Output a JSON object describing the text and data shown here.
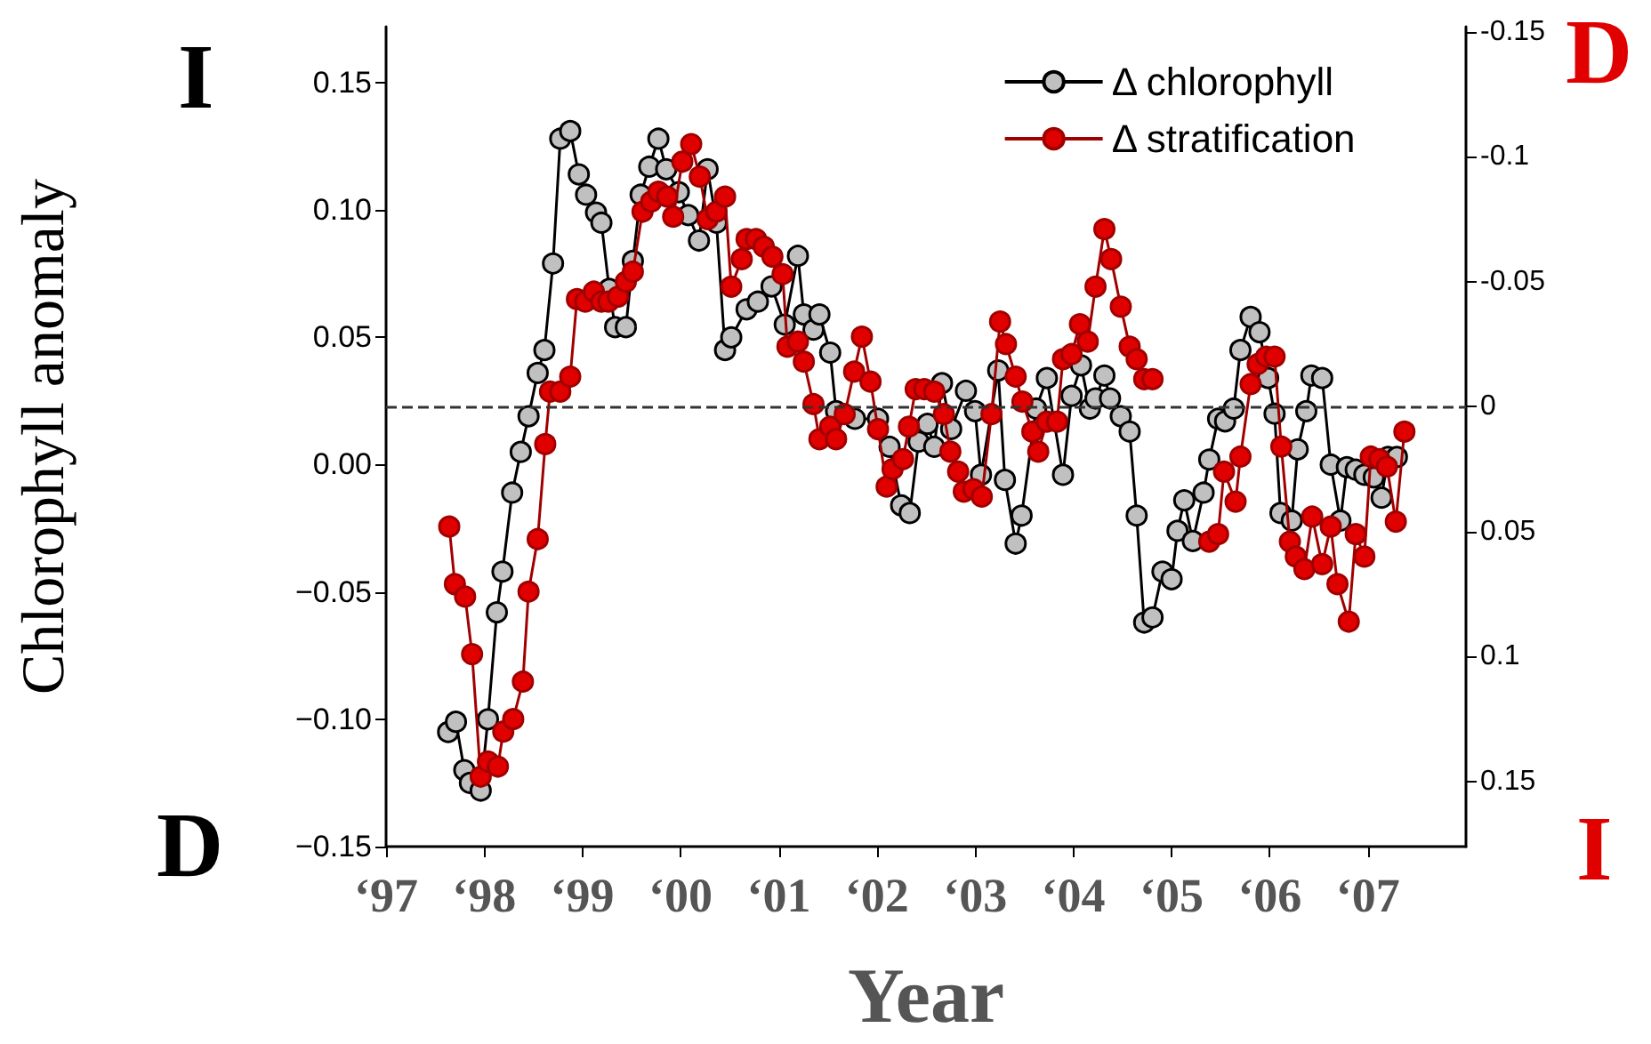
{
  "chart_data": {
    "type": "line",
    "xlabel": "Year",
    "ylabel": "Chlorophyll anomaly",
    "annotations": [
      "I",
      "D",
      "D",
      "I"
    ],
    "xlim": [
      "1997",
      "2008"
    ],
    "xticks": [
      {
        "value": "1997",
        "label": "‘97"
      },
      {
        "value": "1998",
        "label": "‘98"
      },
      {
        "value": "1999",
        "label": "‘99"
      },
      {
        "value": "2000",
        "label": "‘00"
      },
      {
        "value": "2001",
        "label": "‘01"
      },
      {
        "value": "2002",
        "label": "‘02"
      },
      {
        "value": "2003",
        "label": "‘03"
      },
      {
        "value": "2004",
        "label": "‘04"
      },
      {
        "value": "2005",
        "label": "‘05"
      },
      {
        "value": "2006",
        "label": "‘06"
      },
      {
        "value": "2007",
        "label": "‘07"
      }
    ],
    "ylim": [
      -0.15,
      0.172
    ],
    "yticks": [
      {
        "value": -0.15,
        "label": "−0.15"
      },
      {
        "value": -0.1,
        "label": "−0.10"
      },
      {
        "value": -0.05,
        "label": "−0.05"
      },
      {
        "value": 0,
        "label": "0.00"
      },
      {
        "value": 0.05,
        "label": "0.05"
      },
      {
        "value": 0.1,
        "label": "0.10"
      },
      0.15
    ],
    "y2lim": [
      0.176,
      -0.152
    ],
    "y2ticks": [
      -0.15,
      -0.1,
      -0.05,
      0,
      0.05,
      0.1,
      0.15
    ],
    "ref_lines": [
      {
        "axis": "y2",
        "value": 0,
        "color": "#333333",
        "line_style": "dashed"
      }
    ],
    "legend": "top right",
    "grid": false,
    "marker": "circle",
    "line_style": "solid",
    "series": [
      {
        "name": "Δ chlorophyll",
        "color": "#c0c0c0",
        "x": [
          "1997-08-20",
          "1997-09-18",
          "1997-10-19",
          "1997-11-09",
          "1997-12-19",
          "1998-01-15",
          "1998-02-17",
          "1998-03-10",
          "1998-04-15",
          "1998-05-17",
          "1998-06-15",
          "1998-07-19",
          "1998-08-13",
          "1998-09-14",
          "1998-10-11",
          "1998-11-17",
          "1998-12-19",
          "1999-01-15",
          "1999-02-21",
          "1999-03-13",
          "1999-04-11",
          "1999-05-03",
          "1999-06-12",
          "1999-07-08",
          "1999-08-06",
          "1999-09-07",
          "1999-10-11",
          "1999-11-09",
          "1999-12-26",
          "2000-01-30",
          "2000-03-10",
          "2000-04-11",
          "2000-05-14",
          "2000-06-15",
          "2000-07-08",
          "2000-09-03",
          "2000-10-15",
          "2000-12-05",
          "2001-01-23",
          "2001-03-13",
          "2001-04-04",
          "2001-05-10",
          "2001-06-01",
          "2001-07-11",
          "2001-08-02",
          "2001-10-11",
          "2002-01-05",
          "2002-02-17",
          "2002-04-01",
          "2002-05-03",
          "2002-06-05",
          "2002-07-08",
          "2002-08-02",
          "2002-08-31",
          "2002-10-04",
          "2002-11-28",
          "2003-01-01",
          "2003-01-23",
          "2003-03-28",
          "2003-04-22",
          "2003-06-01",
          "2003-06-23",
          "2003-08-16",
          "2003-09-25",
          "2003-11-24",
          "2003-12-26",
          "2004-01-30",
          "2004-03-03",
          "2004-03-24",
          "2004-04-26",
          "2004-05-17",
          "2004-06-26",
          "2004-07-29",
          "2004-08-24",
          "2004-09-21",
          "2004-10-22",
          "2004-11-28",
          "2005-01-01",
          "2005-01-23",
          "2005-02-17",
          "2005-03-21",
          "2005-04-30",
          "2005-05-21",
          "2005-06-23",
          "2005-07-19",
          "2005-08-20",
          "2005-09-14",
          "2005-10-22",
          "2005-11-24",
          "2005-12-26",
          "2006-01-19",
          "2006-02-10",
          "2006-03-24",
          "2006-04-15",
          "2006-05-17",
          "2006-06-05",
          "2006-07-15",
          "2006-08-16",
          "2006-09-21",
          "2006-10-15",
          "2006-11-17",
          "2006-12-19",
          "2007-01-23",
          "2007-02-21",
          "2007-03-17",
          "2007-04-19"
        ],
        "values": [
          -0.105,
          -0.101,
          -0.12,
          -0.125,
          -0.128,
          -0.1,
          -0.058,
          -0.042,
          -0.011,
          0.005,
          0.019,
          0.036,
          0.045,
          0.079,
          0.128,
          0.131,
          0.114,
          0.106,
          0.099,
          0.095,
          0.069,
          0.054,
          0.054,
          0.08,
          0.106,
          0.117,
          0.128,
          0.116,
          0.107,
          0.098,
          0.088,
          0.116,
          0.095,
          0.045,
          0.05,
          0.061,
          0.064,
          0.07,
          0.055,
          0.082,
          0.059,
          0.053,
          0.059,
          0.044,
          0.021,
          0.018,
          0.018,
          0.007,
          -0.016,
          -0.019,
          0.009,
          0.016,
          0.007,
          0.032,
          0.014,
          0.029,
          0.021,
          -0.004,
          0.037,
          -0.006,
          -0.031,
          -0.02,
          0.022,
          0.034,
          -0.004,
          0.027,
          0.039,
          0.022,
          0.026,
          0.035,
          0.026,
          0.019,
          0.013,
          -0.02,
          -0.062,
          -0.06,
          -0.042,
          -0.045,
          -0.026,
          -0.014,
          -0.03,
          -0.011,
          0.002,
          0.018,
          0.017,
          0.022,
          0.045,
          0.058,
          0.052,
          0.034,
          0.02,
          -0.019,
          -0.022,
          0.006,
          0.021,
          0.035,
          0.034,
          0,
          -0.022,
          -0.001,
          -0.002,
          -0.004,
          -0.005,
          -0.013,
          0.003,
          0.003
        ]
      },
      {
        "name": "Δ stratification",
        "color": "#e00000",
        "axis": "y2",
        "x": [
          "1997-08-24",
          "1997-09-14",
          "1997-10-22",
          "1997-11-17",
          "1997-12-19",
          "1998-01-15",
          "1998-02-21",
          "1998-03-13",
          "1998-04-19",
          "1998-05-25",
          "1998-06-15",
          "1998-07-19",
          "1998-08-16",
          "1998-09-03",
          "1998-10-11",
          "1998-11-17",
          "1998-12-12",
          "1999-01-12",
          "1999-02-13",
          "1999-03-13",
          "1999-04-08",
          "1999-05-14",
          "1999-06-12",
          "1999-07-08",
          "1999-08-13",
          "1999-09-14",
          "1999-10-11",
          "1999-11-13",
          "1999-12-05",
          "2000-01-08",
          "2000-02-10",
          "2000-03-13",
          "2000-04-11",
          "2000-05-14",
          "2000-06-15",
          "2000-07-08",
          "2000-08-16",
          "2000-09-03",
          "2000-10-08",
          "2000-11-06",
          "2000-12-08",
          "2001-01-15",
          "2001-02-02",
          "2001-03-13",
          "2001-04-04",
          "2001-05-10",
          "2001-06-01",
          "2001-07-11",
          "2001-08-02",
          "2001-09-03",
          "2001-10-08",
          "2001-11-06",
          "2001-12-08",
          "2002-01-05",
          "2002-02-06",
          "2002-02-28",
          "2002-04-08",
          "2002-04-30",
          "2002-05-25",
          "2002-06-26",
          "2002-08-02",
          "2002-09-07",
          "2002-10-01",
          "2002-10-30",
          "2002-11-20",
          "2002-12-26",
          "2003-01-26",
          "2003-03-03",
          "2003-04-04",
          "2003-04-26",
          "2003-06-01",
          "2003-06-26",
          "2003-08-02",
          "2003-08-24",
          "2003-09-25",
          "2003-11-02",
          "2003-11-24",
          "2003-12-26",
          "2004-01-26",
          "2004-02-24",
          "2004-03-24",
          "2004-04-26",
          "2004-05-21",
          "2004-06-26",
          "2004-07-29",
          "2004-08-24",
          "2004-09-21",
          "2004-10-22",
          "2005-02-06",
          "2005-05-21",
          "2005-06-23",
          "2005-07-15",
          "2005-08-27",
          "2005-09-14",
          "2005-10-22",
          "2005-11-17",
          "2005-12-19",
          "2006-01-19",
          "2006-02-13",
          "2006-03-17",
          "2006-04-08",
          "2006-05-10",
          "2006-06-08",
          "2006-07-15",
          "2006-08-16",
          "2006-09-10",
          "2006-10-22",
          "2006-11-17",
          "2006-12-19",
          "2007-01-12",
          "2007-02-13",
          "2007-03-13",
          "2007-04-15",
          "2007-05-17"
        ],
        "values": [
          0.048,
          0.071,
          0.076,
          0.099,
          0.148,
          0.142,
          0.144,
          0.13,
          0.125,
          0.11,
          0.074,
          0.053,
          0.015,
          -0.006,
          -0.006,
          -0.012,
          -0.043,
          -0.042,
          -0.046,
          -0.042,
          -0.042,
          -0.044,
          -0.05,
          -0.054,
          -0.078,
          -0.082,
          -0.086,
          -0.084,
          -0.076,
          -0.098,
          -0.105,
          -0.092,
          -0.075,
          -0.078,
          -0.084,
          -0.048,
          -0.059,
          -0.067,
          -0.067,
          -0.064,
          -0.06,
          -0.053,
          -0.024,
          -0.026,
          -0.018,
          -0.001,
          0.013,
          0.008,
          0.013,
          0.003,
          -0.014,
          -0.028,
          -0.01,
          0.009,
          0.032,
          0.025,
          0.021,
          0.008,
          -0.007,
          -0.007,
          -0.006,
          0.003,
          0.018,
          0.026,
          0.034,
          0.033,
          0.036,
          0.003,
          -0.034,
          -0.025,
          -0.012,
          -0.002,
          0.01,
          0.018,
          0.006,
          0.006,
          -0.019,
          -0.021,
          -0.033,
          -0.026,
          -0.048,
          -0.071,
          -0.059,
          -0.04,
          -0.024,
          -0.019,
          -0.011,
          -0.011,
          null,
          0.054,
          0.051,
          0.026,
          0.038,
          0.02,
          -0.009,
          -0.017,
          -0.02,
          -0.02,
          0.016,
          0.054,
          0.06,
          0.065,
          0.044,
          0.063,
          0.048,
          0.071,
          0.086,
          0.051,
          0.06,
          0.02,
          0.021,
          0.024,
          0.046,
          0.01
        ]
      }
    ]
  }
}
